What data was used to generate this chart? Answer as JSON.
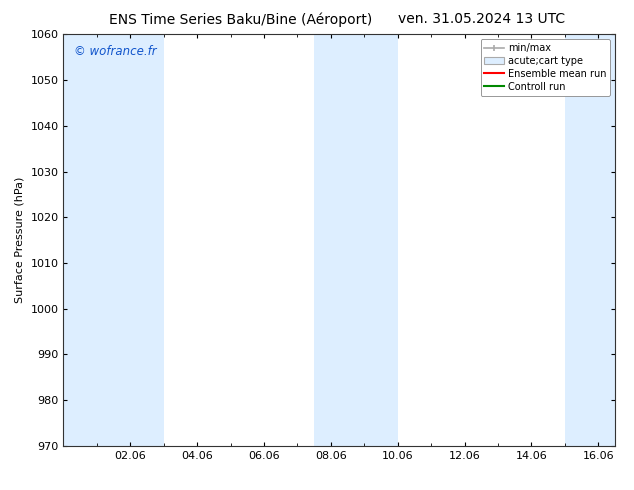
{
  "title_left": "ENS Time Series Baku/Bine (Aéroport)",
  "title_right": "ven. 31.05.2024 13 UTC",
  "ylabel": "Surface Pressure (hPa)",
  "ylim": [
    970,
    1060
  ],
  "yticks": [
    970,
    980,
    990,
    1000,
    1010,
    1020,
    1030,
    1040,
    1050,
    1060
  ],
  "xtick_labels": [
    "02.06",
    "04.06",
    "06.06",
    "08.06",
    "10.06",
    "12.06",
    "14.06",
    "16.06"
  ],
  "xtick_positions": [
    2,
    4,
    6,
    8,
    10,
    12,
    14,
    16
  ],
  "xlim": [
    0,
    16.5
  ],
  "watermark": "© wofrance.fr",
  "watermark_color": "#1155cc",
  "background_color": "#ffffff",
  "plot_bg_color": "#ffffff",
  "shaded_bands": [
    {
      "x_start": 0.0,
      "x_end": 1.0,
      "color": "#ddeeff"
    },
    {
      "x_start": 1.0,
      "x_end": 3.0,
      "color": "#ddeeff"
    },
    {
      "x_start": 7.5,
      "x_end": 8.5,
      "color": "#ddeeff"
    },
    {
      "x_start": 8.5,
      "x_end": 10.0,
      "color": "#ddeeff"
    },
    {
      "x_start": 15.0,
      "x_end": 16.5,
      "color": "#ddeeff"
    }
  ],
  "legend_items": [
    {
      "label": "min/max",
      "type": "errorbar",
      "color": "#aaaaaa"
    },
    {
      "label": "acute;cart type",
      "type": "box",
      "color": "#ddeeff",
      "edgecolor": "#aaaaaa"
    },
    {
      "label": "Ensemble mean run",
      "type": "line",
      "color": "#ff0000"
    },
    {
      "label": "Controll run",
      "type": "line",
      "color": "#008800"
    }
  ],
  "title_fontsize": 10,
  "tick_fontsize": 8,
  "ylabel_fontsize": 8,
  "legend_fontsize": 7
}
